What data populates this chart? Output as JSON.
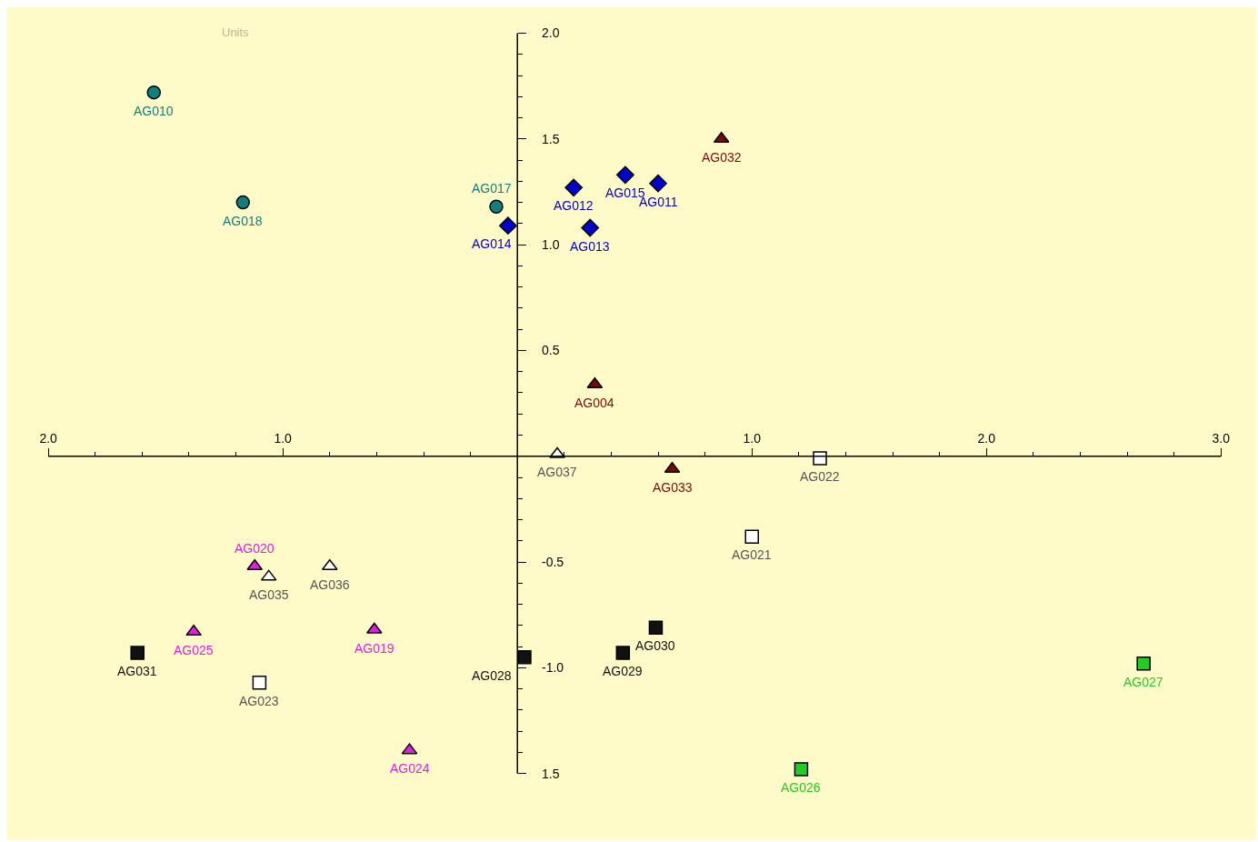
{
  "chart_data": {
    "type": "scatter",
    "xlim": [
      -2,
      3
    ],
    "ylim": [
      -1.5,
      2
    ],
    "xticks": [
      {
        "value": -2,
        "label": "2.0"
      },
      {
        "value": -1.8,
        "label": null
      },
      {
        "value": -1.6,
        "label": null
      },
      {
        "value": -1.4,
        "label": null
      },
      {
        "value": -1.2,
        "label": null
      },
      {
        "value": -1,
        "label": "1.0"
      },
      {
        "value": -0.8,
        "label": null
      },
      {
        "value": -0.6,
        "label": null
      },
      {
        "value": -0.4,
        "label": null
      },
      {
        "value": -0.2,
        "label": null
      },
      {
        "value": 0.2,
        "label": null
      },
      {
        "value": 0.4,
        "label": null
      },
      {
        "value": 0.6,
        "label": null
      },
      {
        "value": 0.8,
        "label": null
      },
      {
        "value": 1,
        "label": "1.0"
      },
      {
        "value": 1.2,
        "label": null
      },
      {
        "value": 1.4,
        "label": null
      },
      {
        "value": 1.6,
        "label": null
      },
      {
        "value": 1.8,
        "label": null
      },
      {
        "value": 2,
        "label": "2.0"
      },
      {
        "value": 2.2,
        "label": null
      },
      {
        "value": 2.4,
        "label": null
      },
      {
        "value": 2.6,
        "label": null
      },
      {
        "value": 2.8,
        "label": null
      },
      {
        "value": 3,
        "label": "3.0"
      }
    ],
    "yticks": [
      {
        "value": 2,
        "label": "2.0"
      },
      {
        "value": 1.9,
        "label": null
      },
      {
        "value": 1.8,
        "label": null
      },
      {
        "value": 1.7,
        "label": null
      },
      {
        "value": 1.6,
        "label": null
      },
      {
        "value": 1.5,
        "label": "1.5"
      },
      {
        "value": 1.4,
        "label": null
      },
      {
        "value": 1.3,
        "label": null
      },
      {
        "value": 1.2,
        "label": null
      },
      {
        "value": 1.1,
        "label": null
      },
      {
        "value": 1,
        "label": "1.0"
      },
      {
        "value": 0.9,
        "label": null
      },
      {
        "value": 0.8,
        "label": null
      },
      {
        "value": 0.7,
        "label": null
      },
      {
        "value": 0.6,
        "label": null
      },
      {
        "value": 0.5,
        "label": "0.5"
      },
      {
        "value": 0.4,
        "label": null
      },
      {
        "value": 0.3,
        "label": null
      },
      {
        "value": 0.2,
        "label": null
      },
      {
        "value": 0.1,
        "label": null
      },
      {
        "value": -0.1,
        "label": null
      },
      {
        "value": -0.2,
        "label": null
      },
      {
        "value": -0.3,
        "label": null
      },
      {
        "value": -0.4,
        "label": null
      },
      {
        "value": -0.5,
        "label": "-0.5"
      },
      {
        "value": -0.6,
        "label": null
      },
      {
        "value": -0.7,
        "label": null
      },
      {
        "value": -0.8,
        "label": null
      },
      {
        "value": -0.9,
        "label": null
      },
      {
        "value": -1,
        "label": "-1.0"
      },
      {
        "value": -1.1,
        "label": null
      },
      {
        "value": -1.2,
        "label": null
      },
      {
        "value": -1.3,
        "label": null
      },
      {
        "value": -1.4,
        "label": null
      },
      {
        "value": -1.5,
        "label": "1.5"
      }
    ],
    "grid": false,
    "series": [
      {
        "color": "#0f7f7f",
        "marker": "circle",
        "x": [
          -1.55,
          -1.17,
          -0.09
        ],
        "values": [
          1.72,
          1.2,
          1.18
        ]
      },
      {
        "color": "#0000cc",
        "marker": "diamond",
        "x": [
          0.24,
          0.46,
          0.6,
          0.31,
          -0.04
        ],
        "values": [
          1.27,
          1.33,
          1.29,
          1.08,
          1.09
        ]
      },
      {
        "color": "#7a0a0a",
        "marker": "triangle",
        "x": [
          0.87,
          0.33,
          0.66
        ],
        "values": [
          1.5,
          0.34,
          -0.06
        ]
      },
      {
        "color": "#ffffff",
        "marker": "triangle",
        "x": [
          0.17,
          -1.06,
          -0.8
        ],
        "values": [
          0.01,
          -0.57,
          -0.52
        ]
      },
      {
        "color": "#e020e0",
        "marker": "triangle",
        "x": [
          -1.12,
          -1.38,
          -0.61,
          -0.46
        ],
        "values": [
          -0.52,
          -0.83,
          -0.82,
          -1.39
        ]
      },
      {
        "color": "#ffffff",
        "marker": "square",
        "x": [
          1.29,
          1.0,
          -1.1
        ],
        "values": [
          -0.01,
          -0.38,
          -1.07
        ]
      },
      {
        "color": "#111111",
        "marker": "square",
        "x": [
          -1.62,
          0.03,
          0.45,
          0.59
        ],
        "values": [
          -0.93,
          -0.95,
          -0.93,
          -0.81
        ]
      },
      {
        "color": "#22cc22",
        "marker": "square",
        "x": [
          1.21,
          2.67
        ],
        "values": [
          -1.48,
          -0.98
        ]
      }
    ],
    "annotations": [
      "Units",
      {
        "text": "AG010",
        "x": -1.55,
        "y": 1.72
      },
      {
        "text": "AG018",
        "x": -1.17,
        "y": 1.2
      },
      {
        "text": "AG017",
        "x": -0.09,
        "y": 1.18
      },
      {
        "text": "AG012",
        "x": 0.24,
        "y": 1.27
      },
      {
        "text": "AG015",
        "x": 0.46,
        "y": 1.33
      },
      {
        "text": "AG011",
        "x": 0.6,
        "y": 1.29
      },
      {
        "text": "AG013",
        "x": 0.31,
        "y": 1.08
      },
      {
        "text": "AG014",
        "x": -0.04,
        "y": 1.09
      },
      {
        "text": "AG032",
        "x": 0.87,
        "y": 1.5
      },
      {
        "text": "AG004",
        "x": 0.33,
        "y": 0.34
      },
      {
        "text": "AG033",
        "x": 0.66,
        "y": -0.06
      },
      {
        "text": "AG037",
        "x": 0.17,
        "y": 0.01
      },
      {
        "text": "AG035",
        "x": -1.06,
        "y": -0.57
      },
      {
        "text": "AG036",
        "x": -0.8,
        "y": -0.52
      },
      {
        "text": "AG020",
        "x": -1.12,
        "y": -0.52
      },
      {
        "text": "AG025",
        "x": -1.38,
        "y": -0.83
      },
      {
        "text": "AG019",
        "x": -0.61,
        "y": -0.82
      },
      {
        "text": "AG024",
        "x": -0.46,
        "y": -1.39
      },
      {
        "text": "AG022",
        "x": 1.29,
        "y": -0.01
      },
      {
        "text": "AG021",
        "x": 1.0,
        "y": -0.38
      },
      {
        "text": "AG023",
        "x": -1.1,
        "y": -1.07
      },
      {
        "text": "AG031",
        "x": -1.62,
        "y": -0.93
      },
      {
        "text": "AG028",
        "x": 0.03,
        "y": -0.95
      },
      {
        "text": "AG029",
        "x": 0.45,
        "y": -0.93
      },
      {
        "text": "AG030",
        "x": 0.59,
        "y": -0.81
      },
      {
        "text": "AG026",
        "x": 1.21,
        "y": -1.48
      },
      {
        "text": "AG027",
        "x": 2.67,
        "y": -0.98
      }
    ]
  }
}
